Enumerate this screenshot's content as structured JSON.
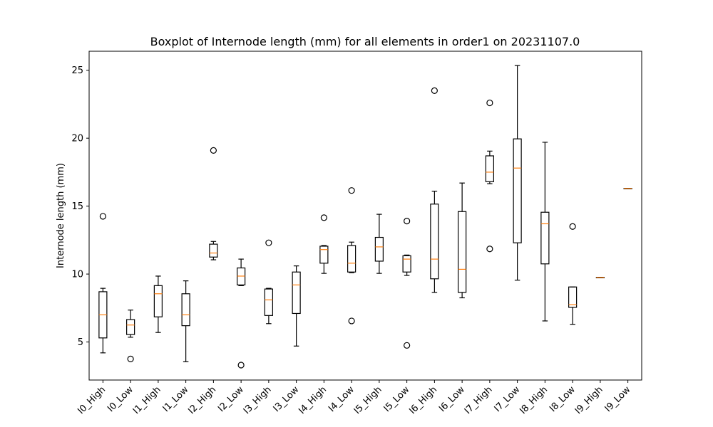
{
  "chart_data": {
    "type": "box",
    "title": "Boxplot of Internode length (mm) for all elements in order1 on 20231107.0",
    "xlabel": "",
    "ylabel": "Internode length (mm)",
    "ylim": [
      2.2,
      26.4
    ],
    "yticks": [
      5,
      10,
      15,
      20,
      25
    ],
    "grid": false,
    "colors": {
      "box": "#000000",
      "median": "#ff7f0e",
      "outlier": "#000000"
    },
    "categories": [
      "I0_High",
      "I0_Low",
      "I1_High",
      "I1_Low",
      "I2_High",
      "I2_Low",
      "I3_High",
      "I3_Low",
      "I4_High",
      "I4_Low",
      "I5_High",
      "I5_Low",
      "I6_High",
      "I6_Low",
      "I7_High",
      "I7_Low",
      "I8_High",
      "I8_Low",
      "I9_High",
      "I9_Low"
    ],
    "boxes": [
      {
        "whislo": 4.2,
        "q1": 5.3,
        "med": 7.0,
        "q3": 8.7,
        "whishi": 8.95,
        "fliers": [
          14.25
        ]
      },
      {
        "whislo": 5.35,
        "q1": 5.55,
        "med": 6.25,
        "q3": 6.65,
        "whishi": 7.35,
        "fliers": [
          3.75
        ]
      },
      {
        "whislo": 5.7,
        "q1": 6.85,
        "med": 8.55,
        "q3": 9.15,
        "whishi": 9.85,
        "fliers": []
      },
      {
        "whislo": 3.55,
        "q1": 6.2,
        "med": 7.0,
        "q3": 8.55,
        "whishi": 9.5,
        "fliers": []
      },
      {
        "whislo": 11.05,
        "q1": 11.25,
        "med": 11.55,
        "q3": 12.2,
        "whishi": 12.4,
        "fliers": [
          19.1
        ]
      },
      {
        "whislo": 9.15,
        "q1": 9.2,
        "med": 9.85,
        "q3": 10.45,
        "whishi": 11.1,
        "fliers": [
          3.3
        ]
      },
      {
        "whislo": 6.35,
        "q1": 6.95,
        "med": 8.1,
        "q3": 8.9,
        "whishi": 8.95,
        "fliers": [
          12.3
        ]
      },
      {
        "whislo": 4.7,
        "q1": 7.1,
        "med": 9.2,
        "q3": 10.15,
        "whishi": 10.6,
        "fliers": []
      },
      {
        "whislo": 10.05,
        "q1": 10.8,
        "med": 11.8,
        "q3": 12.05,
        "whishi": 12.1,
        "fliers": [
          14.15
        ]
      },
      {
        "whislo": 10.1,
        "q1": 10.15,
        "med": 10.8,
        "q3": 12.1,
        "whishi": 12.35,
        "fliers": [
          6.55,
          16.15
        ]
      },
      {
        "whislo": 10.05,
        "q1": 10.95,
        "med": 12.0,
        "q3": 12.7,
        "whishi": 14.4,
        "fliers": []
      },
      {
        "whislo": 9.9,
        "q1": 10.15,
        "med": 11.1,
        "q3": 11.35,
        "whishi": 11.4,
        "fliers": [
          4.75,
          13.9
        ]
      },
      {
        "whislo": 8.65,
        "q1": 9.65,
        "med": 11.1,
        "q3": 15.15,
        "whishi": 16.1,
        "fliers": [
          23.5
        ]
      },
      {
        "whislo": 8.25,
        "q1": 8.65,
        "med": 10.35,
        "q3": 14.6,
        "whishi": 16.7,
        "fliers": []
      },
      {
        "whislo": 16.65,
        "q1": 16.8,
        "med": 17.5,
        "q3": 18.7,
        "whishi": 19.05,
        "fliers": [
          11.85,
          22.6
        ]
      },
      {
        "whislo": 9.55,
        "q1": 12.3,
        "med": 17.8,
        "q3": 19.95,
        "whishi": 25.35,
        "fliers": []
      },
      {
        "whislo": 6.55,
        "q1": 10.75,
        "med": 13.7,
        "q3": 14.55,
        "whishi": 19.7,
        "fliers": []
      },
      {
        "whislo": 6.3,
        "q1": 7.55,
        "med": 7.75,
        "q3": 9.05,
        "whishi": 9.05,
        "fliers": [
          13.5
        ]
      },
      {
        "whislo": 9.75,
        "q1": 9.75,
        "med": 9.75,
        "q3": 9.75,
        "whishi": 9.75,
        "fliers": []
      },
      {
        "whislo": 16.3,
        "q1": 16.3,
        "med": 16.3,
        "q3": 16.3,
        "whishi": 16.3,
        "fliers": []
      }
    ]
  }
}
